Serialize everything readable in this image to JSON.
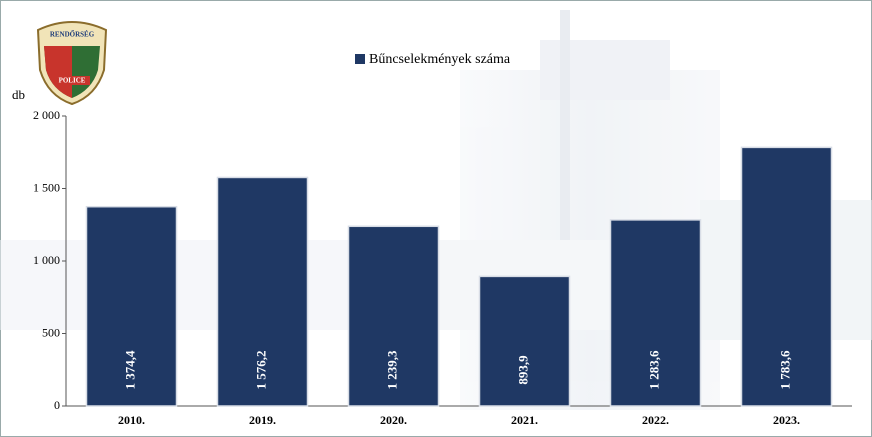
{
  "logo": {
    "top": "RENDŐRSÉG",
    "bottom": "POLICE"
  },
  "chart_data": {
    "type": "bar",
    "y_label": "db",
    "categories": [
      "2010.",
      "2019.",
      "2020.",
      "2021.",
      "2022.",
      "2023."
    ],
    "series": [
      {
        "name": "Bűncselekmények száma",
        "color": "#1f3864",
        "values": [
          1374.4,
          1576.2,
          1239.3,
          893.9,
          1283.6,
          1783.6
        ],
        "value_labels": [
          "1 374,4",
          "1 576,2",
          "1 239,3",
          "893,9",
          "1 283,6",
          "1 783,6"
        ]
      }
    ],
    "ylim": [
      0,
      2000
    ],
    "yticks": [
      0,
      500,
      {
        "value": 1000,
        "label": "1 000"
      },
      {
        "value": 1500,
        "label": "1 500"
      },
      {
        "value": 2000,
        "label": "2 000"
      }
    ],
    "legend": "top"
  }
}
